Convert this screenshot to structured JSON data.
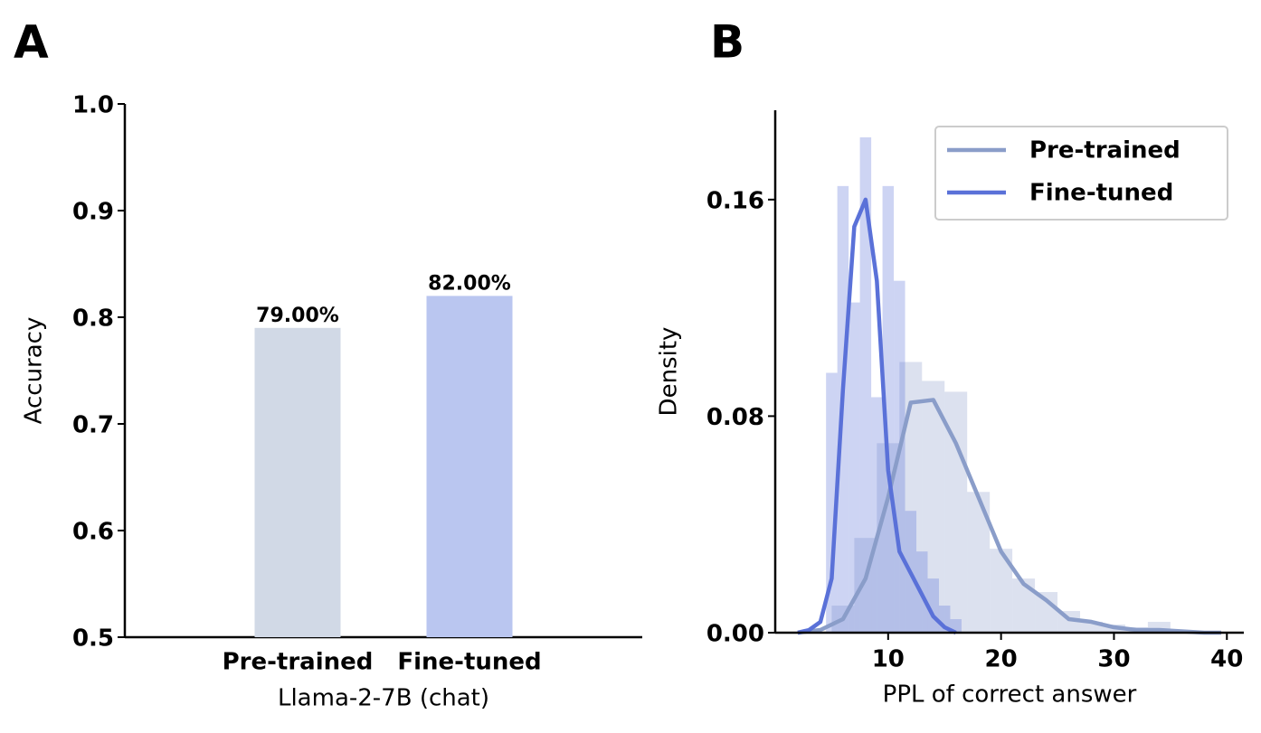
{
  "chart_data": [
    {
      "type": "bar",
      "panel_label": "A",
      "categories": [
        "Pre-trained",
        "Fine-tuned"
      ],
      "values": [
        0.79,
        0.82
      ],
      "value_labels": [
        "79.00%",
        "82.00%"
      ],
      "colors": [
        "#d1d9e6",
        "#bac6f0"
      ],
      "xlabel": "Llama-2-7B (chat)",
      "ylabel": "Accuracy",
      "ylim": [
        0.5,
        1.0
      ],
      "yticks": [
        0.5,
        0.6,
        0.7,
        0.8,
        0.9,
        {
          "value": 1,
          "label": "1.0"
        }
      ]
    },
    {
      "type": "histogram",
      "panel_label": "B",
      "xlabel": "PPL of correct answer",
      "ylabel": "Density",
      "xlim": [
        0,
        41.5
      ],
      "ylim": [
        0,
        0.193
      ],
      "xticks": [
        10,
        20,
        30,
        40
      ],
      "yticks": [
        {
          "value": 0,
          "label": "0.00"
        },
        0.08,
        0.16
      ],
      "legend": "upper right",
      "series": [
        {
          "name": "Pre-trained",
          "color": "#8a9dc9",
          "bins": [
            5,
            7,
            9,
            11,
            13,
            15,
            17,
            19,
            21,
            23,
            25,
            27,
            29,
            31,
            33,
            35
          ],
          "counts": [
            0.01,
            0.035,
            0.07,
            0.1,
            0.093,
            0.089,
            0.052,
            0.031,
            0.02,
            0.015,
            0.008,
            0.004,
            0.003,
            0.002,
            0.004
          ],
          "kde_x": [
            2,
            4,
            6,
            8,
            10,
            12,
            14,
            16,
            18,
            20,
            22,
            24,
            26,
            28,
            30,
            32,
            34,
            36,
            38,
            39.5
          ],
          "kde_y": [
            0,
            0.001,
            0.005,
            0.02,
            0.05,
            0.085,
            0.086,
            0.07,
            0.05,
            0.03,
            0.018,
            0.012,
            0.005,
            0.004,
            0.002,
            0.001,
            0.001,
            0.0005,
            0,
            0
          ]
        },
        {
          "name": "Fine-tuned",
          "color": "#5a71d8",
          "bins": [
            4.5,
            5.5,
            6.5,
            7.5,
            8.5,
            9.5,
            10.5,
            11.5,
            12.5,
            13.5,
            14.5,
            15.5,
            16.5
          ],
          "counts": [
            0.096,
            0.165,
            0.122,
            0.183,
            0.087,
            0.165,
            0.13,
            0.045,
            0.03,
            0.02,
            0.01,
            0.005
          ],
          "kde_x": [
            2,
            3,
            4,
            5,
            6,
            7,
            8,
            9,
            10,
            11,
            12,
            13,
            14,
            15,
            16
          ],
          "kde_y": [
            0,
            0.001,
            0.004,
            0.02,
            0.09,
            0.15,
            0.16,
            0.13,
            0.06,
            0.03,
            0.022,
            0.014,
            0.006,
            0.002,
            0
          ]
        }
      ]
    }
  ]
}
